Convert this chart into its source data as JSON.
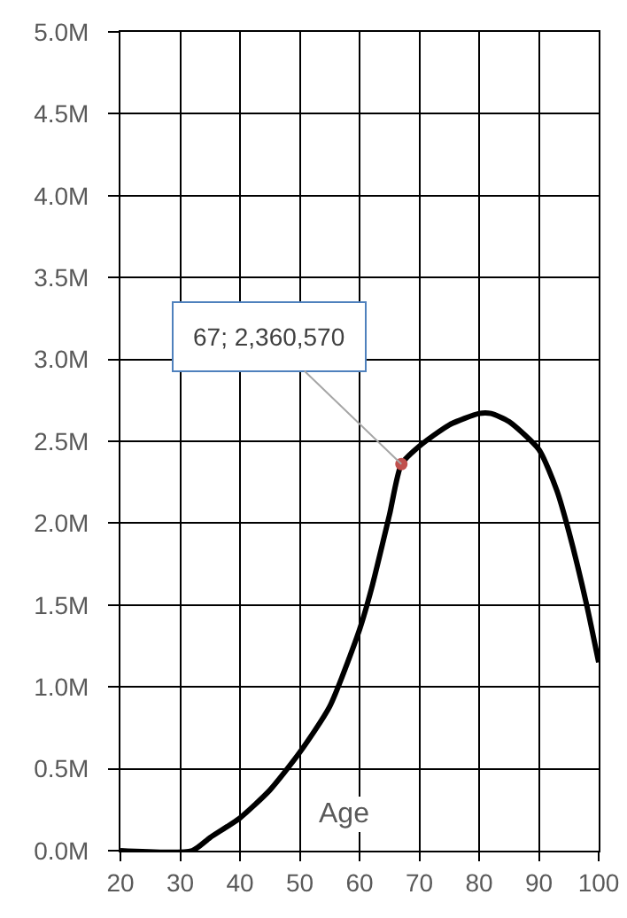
{
  "chart_data": {
    "type": "line",
    "xlabel": "Age",
    "xlim": [
      20,
      100
    ],
    "xticks": [
      20,
      30,
      40,
      50,
      60,
      70,
      80,
      90,
      100
    ],
    "ylim": [
      0,
      5000000
    ],
    "yticks": [
      {
        "value": 0,
        "label": "0.0M"
      },
      {
        "value": 500000,
        "label": "0.5M"
      },
      {
        "value": 1000000,
        "label": "1.0M"
      },
      {
        "value": 1500000,
        "label": "1.5M"
      },
      {
        "value": 2000000,
        "label": "2.0M"
      },
      {
        "value": 2500000,
        "label": "2.5M"
      },
      {
        "value": 3000000,
        "label": "3.0M"
      },
      {
        "value": 3500000,
        "label": "3.5M"
      },
      {
        "value": 4000000,
        "label": "4.0M"
      },
      {
        "value": 4500000,
        "label": "4.5M"
      },
      {
        "value": 5000000,
        "label": "5.0M"
      }
    ],
    "grid": true,
    "marker": "none",
    "line_style": "solid",
    "series": [
      {
        "color": "#000000",
        "x": [
          20,
          32,
          35,
          40,
          45,
          50,
          55,
          60,
          62,
          65,
          67,
          70,
          75,
          80,
          82,
          85,
          90,
          93,
          95,
          98,
          100
        ],
        "values": [
          0,
          0,
          80000,
          200000,
          370000,
          600000,
          880000,
          1350000,
          1600000,
          2050000,
          2360570,
          2470000,
          2600000,
          2670000,
          2670000,
          2620000,
          2450000,
          2200000,
          1950000,
          1500000,
          1150000
        ]
      },
      {
        "type": "scatter",
        "marker": "circle",
        "color": "#c0504d",
        "x": [
          67
        ],
        "values": [
          2360570
        ]
      }
    ],
    "annotations": [
      {
        "text": "67; 2,360,570",
        "x": 67,
        "y": 2360570
      }
    ]
  }
}
